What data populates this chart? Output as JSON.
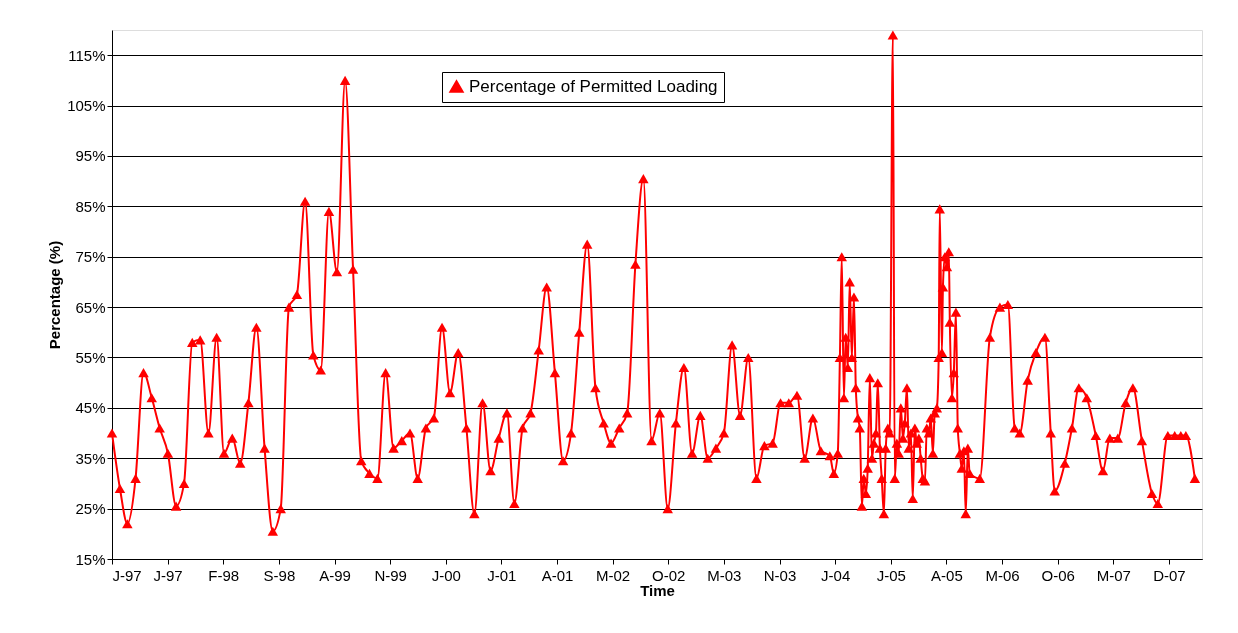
{
  "chart_data": {
    "type": "line",
    "xlabel": "Time",
    "ylabel": "Percentage (%)",
    "legend": "top",
    "grid": "y",
    "marker": "triangle",
    "line_style": "solid",
    "xlim": [
      "1997-01-02",
      "2008-04-09"
    ],
    "ylim": [
      15,
      120
    ],
    "xticks": [
      {
        "value": "1997-01-02",
        "label": "J-97"
      },
      {
        "value": "1997-07-31",
        "label": "J-97"
      },
      {
        "value": "1998-02-26",
        "label": "F-98"
      },
      {
        "value": "1998-09-24",
        "label": "S-98"
      },
      {
        "value": "1999-04-22",
        "label": "A-99"
      },
      {
        "value": "1999-11-18",
        "label": "N-99"
      },
      {
        "value": "2000-06-15",
        "label": "J-00"
      },
      {
        "value": "2001-01-11",
        "label": "J-01"
      },
      {
        "value": "2001-08-09",
        "label": "A-01"
      },
      {
        "value": "2002-03-07",
        "label": "M-02"
      },
      {
        "value": "2002-10-03",
        "label": "O-02"
      },
      {
        "value": "2003-05-01",
        "label": "M-03"
      },
      {
        "value": "2003-11-27",
        "label": "N-03"
      },
      {
        "value": "2004-06-24",
        "label": "J-04"
      },
      {
        "value": "2005-01-20",
        "label": "J-05"
      },
      {
        "value": "2005-08-18",
        "label": "A-05"
      },
      {
        "value": "2006-03-16",
        "label": "M-06"
      },
      {
        "value": "2006-10-12",
        "label": "O-06"
      },
      {
        "value": "2007-05-10",
        "label": "M-07"
      },
      {
        "value": "2007-12-06",
        "label": "D-07"
      }
    ],
    "yticks": [
      {
        "value": 15,
        "label": "15%"
      },
      {
        "value": 25,
        "label": "25%"
      },
      {
        "value": 35,
        "label": "35%"
      },
      {
        "value": 45,
        "label": "45%"
      },
      {
        "value": 55,
        "label": "55%"
      },
      {
        "value": 65,
        "label": "65%"
      },
      {
        "value": 75,
        "label": "75%"
      },
      {
        "value": 85,
        "label": "85%"
      },
      {
        "value": 95,
        "label": "95%"
      },
      {
        "value": 105,
        "label": "105%"
      },
      {
        "value": 115,
        "label": "115%"
      }
    ],
    "series": [
      {
        "name": "Percentage of Permitted Loading",
        "color": "#ff0000",
        "x": [
          "1997-01-02",
          "1997-02",
          "1997-03",
          "1997-04",
          "1997-05",
          "1997-06",
          "1997-07",
          "1997-08",
          "1997-09",
          "1997-10",
          "1997-11",
          "1997-12",
          "1998-01",
          "1998-02",
          "1998-03",
          "1998-04",
          "1998-05",
          "1998-06",
          "1998-07",
          "1998-08",
          "1998-09",
          "1998-10",
          "1998-11",
          "1998-12",
          "1999-01",
          "1999-02",
          "1999-03",
          "1999-04",
          "1999-05",
          "1999-06",
          "1999-07",
          "1999-08",
          "1999-09",
          "1999-10",
          "1999-11",
          "1999-12",
          "2000-01",
          "2000-02",
          "2000-03",
          "2000-04",
          "2000-05",
          "2000-06",
          "2000-07",
          "2000-08",
          "2000-09",
          "2000-10",
          "2000-11",
          "2000-12",
          "2001-01",
          "2001-02",
          "2001-03",
          "2001-04",
          "2001-05",
          "2001-06",
          "2001-07",
          "2001-08",
          "2001-09",
          "2001-10",
          "2001-11",
          "2001-12",
          "2002-01",
          "2002-02",
          "2002-03",
          "2002-04",
          "2002-05",
          "2002-06",
          "2002-07",
          "2002-08",
          "2002-09",
          "2002-10",
          "2002-11",
          "2002-12",
          "2003-01",
          "2003-02",
          "2003-03",
          "2003-04",
          "2003-05",
          "2003-06",
          "2003-07",
          "2003-08",
          "2003-09",
          "2003-10",
          "2003-11",
          "2003-12",
          "2004-01",
          "2004-02",
          "2004-03",
          "2004-04",
          "2004-05",
          "2004-06-04",
          "2004-06-19",
          "2004-07-04",
          "2004-07-12",
          "2004-07-19",
          "2004-07-27",
          "2004-08-03",
          "2004-08-11",
          "2004-08-18",
          "2004-08-26",
          "2004-09-03",
          "2004-09-10",
          "2004-09-18",
          "2004-09-25",
          "2004-10-03",
          "2004-10-10",
          "2004-10-18",
          "2004-10-25",
          "2004-11-02",
          "2004-11-10",
          "2004-11-17",
          "2004-11-25",
          "2004-12-02",
          "2004-12-10",
          "2004-12-17",
          "2004-12-25",
          "2005-01-01",
          "2005-01-09",
          "2005-01-16",
          "2005-01-28",
          "2005-02-04",
          "2005-02-12",
          "2005-02-19",
          "2005-02-27",
          "2005-03-07",
          "2005-03-14",
          "2005-03-22",
          "2005-03-29",
          "2005-04-06",
          "2005-04-13",
          "2005-04-21",
          "2005-04-28",
          "2005-05-06",
          "2005-05-13",
          "2005-05-21",
          "2005-05-29",
          "2005-06-05",
          "2005-06-13",
          "2005-06-20",
          "2005-06-28",
          "2005-07-05",
          "2005-07-13",
          "2005-07-20",
          "2005-07-24",
          "2005-08-01",
          "2005-08-05",
          "2005-08-12",
          "2005-08-20",
          "2005-08-27",
          "2005-08-31",
          "2005-09-08",
          "2005-09-15",
          "2005-09-23",
          "2005-09-30",
          "2005-10-08",
          "2005-10-15",
          "2005-10-23",
          "2005-10-30",
          "2005-11-07",
          "2005-11-14",
          "2005-12-22",
          "2006-01-29",
          "2006-03-08",
          "2006-04-07",
          "2006-05-03",
          "2006-05-22",
          "2006-06-21",
          "2006-07-22",
          "2006-08-25",
          "2006-09-16",
          "2006-10-01",
          "2006-11-08",
          "2006-12-05",
          "2006-12-31",
          "2007-01-30",
          "2007-03-05",
          "2007-04-01",
          "2007-04-27",
          "2007-05-27",
          "2007-06-26",
          "2007-07-23",
          "2007-08-26",
          "2007-10-03",
          "2007-10-25",
          "2007-12-02",
          "2007-12-28",
          "2008-01-20",
          "2008-02-08",
          "2008-03-13"
        ],
        "values": [
          40,
          29,
          22,
          31,
          52,
          47,
          41,
          36,
          25.5,
          30,
          58,
          58.5,
          40,
          59,
          36,
          39,
          34,
          46,
          61,
          37,
          20.5,
          25,
          65,
          67.5,
          86,
          55.5,
          52.5,
          84,
          72,
          110,
          72.5,
          34.5,
          32,
          31,
          52,
          37,
          38.5,
          40,
          31,
          41,
          43,
          61,
          48,
          56,
          41,
          24,
          46,
          32.5,
          39,
          44,
          26,
          41,
          44,
          56.5,
          69,
          52,
          34.5,
          40,
          60,
          77.5,
          49,
          42,
          38,
          41,
          44,
          73.5,
          90.5,
          38.5,
          44,
          25,
          42,
          53,
          36,
          43.5,
          35,
          37,
          40,
          57.5,
          43.5,
          55,
          31,
          37.5,
          38,
          46,
          46,
          47.5,
          35,
          43,
          36.5,
          35.5,
          32,
          36,
          55,
          75,
          47,
          59,
          53,
          70,
          55,
          67,
          49,
          43,
          41,
          25.5,
          31,
          28,
          33,
          51,
          35,
          38,
          40,
          50,
          37,
          31,
          24,
          37,
          41,
          40,
          119,
          31,
          38,
          36,
          45,
          39,
          42,
          49,
          37,
          40,
          27,
          41,
          38,
          39,
          35,
          31,
          30.5,
          41,
          40,
          43,
          36,
          44,
          45,
          55,
          84.5,
          56,
          69,
          75,
          73,
          76,
          62,
          47,
          52,
          64,
          41,
          36,
          33,
          36.5,
          24,
          37,
          32,
          31,
          59,
          65,
          65.5,
          41,
          40,
          50.5,
          56,
          59,
          40,
          28.5,
          34,
          41,
          49,
          47,
          39.5,
          32.5,
          39,
          39,
          46,
          49,
          38.5,
          28,
          26,
          39.5,
          39.5,
          39.5,
          39.5,
          31
        ]
      }
    ]
  }
}
